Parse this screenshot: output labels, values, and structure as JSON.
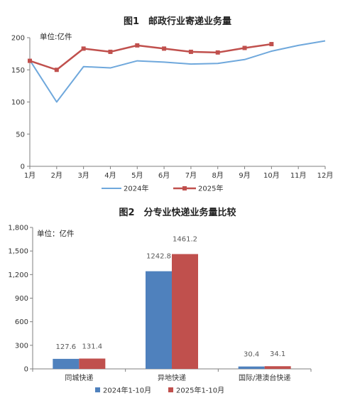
{
  "chart_data": [
    {
      "type": "line",
      "title": "图1　邮政行业寄递业务量",
      "unit_label": "单位:亿件",
      "categories": [
        "1月",
        "2月",
        "3月",
        "4月",
        "5月",
        "6月",
        "7月",
        "8月",
        "9月",
        "10月",
        "11月",
        "12月"
      ],
      "ylim": [
        0,
        200
      ],
      "yticks": [
        0,
        50,
        100,
        150,
        200
      ],
      "grid": false,
      "legend_position": "bottom",
      "series": [
        {
          "name": "2024年",
          "color": "#6fa8dc",
          "marker": "none",
          "values": [
            165,
            100,
            155,
            153,
            164,
            162,
            159,
            160,
            166,
            179,
            188,
            195
          ]
        },
        {
          "name": "2025年",
          "color": "#c0504d",
          "marker": "square",
          "values": [
            164,
            150,
            183,
            178,
            188,
            183,
            178,
            177,
            184,
            190,
            null,
            null
          ]
        }
      ]
    },
    {
      "type": "bar",
      "title": "图2　分专业快递业务量比较",
      "unit_label": "单位：亿件",
      "categories": [
        "同城快递",
        "异地快递",
        "国际/港澳台快递"
      ],
      "ylim": [
        0,
        1800
      ],
      "yticks": [
        "0",
        "300",
        "600",
        "900",
        "1,200",
        "1,500",
        "1,800"
      ],
      "ytick_values": [
        0,
        300,
        600,
        900,
        1200,
        1500,
        1800
      ],
      "grid": false,
      "legend_position": "bottom",
      "series": [
        {
          "name": "2024年1-10月",
          "color": "#4f81bd",
          "values": [
            127.6,
            1242.8,
            30.4
          ],
          "labels": [
            "127.6",
            "1242.8",
            "30.4"
          ]
        },
        {
          "name": "2025年1-10月",
          "color": "#c0504d",
          "values": [
            131.4,
            1461.2,
            34.1
          ],
          "labels": [
            "131.4",
            "1461.2",
            "34.1"
          ]
        }
      ]
    }
  ]
}
